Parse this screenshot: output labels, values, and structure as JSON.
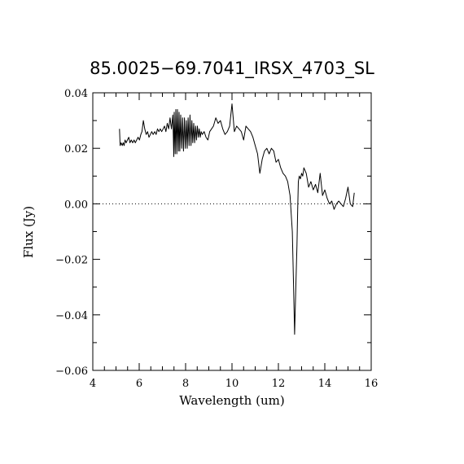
{
  "chart_data": {
    "type": "line",
    "title": "85.0025−69.7041_IRSX_4703_SL",
    "xlabel": "Wavelength (um)",
    "ylabel": "Flux (Jy)",
    "xlim": [
      4,
      16
    ],
    "ylim": [
      -0.06,
      0.04
    ],
    "x_ticks": [
      4,
      6,
      8,
      10,
      12,
      14,
      16
    ],
    "x_tick_labels": [
      "4",
      "6",
      "8",
      "10",
      "12",
      "14",
      "16"
    ],
    "y_ticks": [
      -0.06,
      -0.04,
      -0.02,
      0.0,
      0.02,
      0.04
    ],
    "y_tick_labels": [
      "−0.06",
      "−0.04",
      "−0.02",
      "0.00",
      "0.02",
      "0.04"
    ],
    "zero_line": true,
    "grid": false,
    "series": [
      {
        "color": "#000000",
        "x": [
          5.15,
          5.18,
          5.22,
          5.27,
          5.31,
          5.35,
          5.39,
          5.44,
          5.49,
          5.55,
          5.6,
          5.66,
          5.72,
          5.78,
          5.83,
          5.89,
          5.95,
          6.01,
          6.07,
          6.12,
          6.18,
          6.24,
          6.3,
          6.36,
          6.42,
          6.48,
          6.54,
          6.6,
          6.67,
          6.73,
          6.79,
          6.85,
          6.91,
          6.97,
          7.03,
          7.09,
          7.15,
          7.21,
          7.27,
          7.33,
          7.39,
          7.45,
          7.49,
          7.51,
          7.55,
          7.58,
          7.62,
          7.65,
          7.69,
          7.72,
          7.75,
          7.79,
          7.83,
          7.87,
          7.91,
          7.95,
          7.99,
          8.03,
          8.07,
          8.11,
          8.15,
          8.19,
          8.23,
          8.27,
          8.31,
          8.35,
          8.39,
          8.43,
          8.47,
          8.51,
          8.55,
          8.59,
          8.63,
          8.67,
          8.72,
          8.8,
          8.88,
          8.96,
          9.04,
          9.12,
          9.2,
          9.3,
          9.4,
          9.5,
          9.6,
          9.7,
          9.8,
          9.9,
          10.0,
          10.1,
          10.2,
          10.3,
          10.4,
          10.5,
          10.6,
          10.7,
          10.8,
          10.9,
          11.0,
          11.1,
          11.2,
          11.3,
          11.4,
          11.5,
          11.6,
          11.7,
          11.8,
          11.9,
          12.0,
          12.1,
          12.2,
          12.3,
          12.4,
          12.5,
          12.6,
          12.65,
          12.7,
          12.75,
          12.8,
          12.83,
          12.86,
          12.9,
          12.95,
          13.0,
          13.05,
          13.1,
          13.2,
          13.3,
          13.4,
          13.5,
          13.6,
          13.7,
          13.8,
          13.9,
          14.0,
          14.1,
          14.2,
          14.3,
          14.4,
          14.5,
          14.6,
          14.7,
          14.8,
          14.9,
          15.0,
          15.1,
          15.2,
          15.27
        ],
        "values": [
          0.027,
          0.021,
          0.022,
          0.021,
          0.022,
          0.021,
          0.023,
          0.022,
          0.023,
          0.024,
          0.022,
          0.023,
          0.022,
          0.023,
          0.022,
          0.023,
          0.024,
          0.023,
          0.025,
          0.026,
          0.03,
          0.027,
          0.025,
          0.026,
          0.024,
          0.025,
          0.026,
          0.025,
          0.026,
          0.025,
          0.027,
          0.026,
          0.027,
          0.026,
          0.027,
          0.028,
          0.026,
          0.029,
          0.027,
          0.031,
          0.027,
          0.032,
          0.017,
          0.033,
          0.018,
          0.034,
          0.018,
          0.034,
          0.019,
          0.033,
          0.019,
          0.032,
          0.02,
          0.031,
          0.019,
          0.031,
          0.02,
          0.03,
          0.02,
          0.031,
          0.021,
          0.032,
          0.021,
          0.03,
          0.022,
          0.029,
          0.022,
          0.028,
          0.023,
          0.028,
          0.024,
          0.027,
          0.024,
          0.026,
          0.025,
          0.026,
          0.024,
          0.023,
          0.026,
          0.027,
          0.028,
          0.031,
          0.029,
          0.03,
          0.027,
          0.025,
          0.026,
          0.028,
          0.036,
          0.026,
          0.028,
          0.027,
          0.026,
          0.023,
          0.028,
          0.027,
          0.026,
          0.024,
          0.021,
          0.018,
          0.011,
          0.016,
          0.019,
          0.02,
          0.018,
          0.02,
          0.019,
          0.015,
          0.016,
          0.013,
          0.011,
          0.01,
          0.008,
          0.003,
          -0.01,
          -0.028,
          -0.047,
          -0.03,
          -0.015,
          -0.002,
          0.008,
          0.01,
          0.009,
          0.011,
          0.01,
          0.013,
          0.011,
          0.006,
          0.008,
          0.005,
          0.007,
          0.004,
          0.011,
          0.003,
          0.005,
          0.002,
          0.0,
          0.001,
          -0.002,
          0.0,
          0.001,
          0.0,
          -0.001,
          0.002,
          0.006,
          0.0,
          -0.001,
          0.004
        ]
      }
    ]
  }
}
